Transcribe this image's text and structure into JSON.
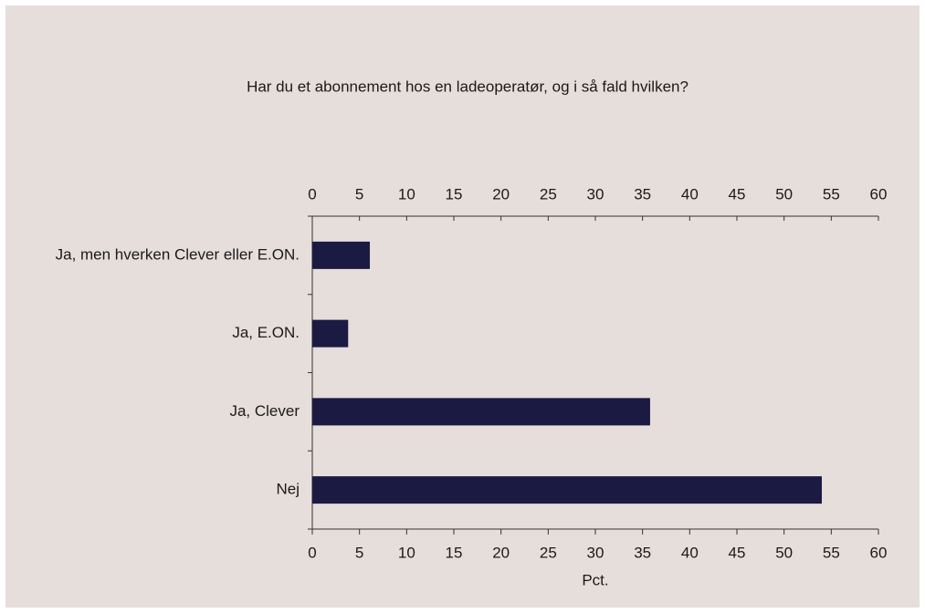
{
  "chart_data": {
    "type": "bar",
    "orientation": "horizontal",
    "title": "Har du et abonnement hos en ladeoperatør, og i så fald hvilken?",
    "categories": [
      "Ja, men hverken Clever eller E.ON.",
      "Ja, E.ON.",
      "Ja, Clever",
      "Nej"
    ],
    "values": [
      6.1,
      3.8,
      35.8,
      54.0
    ],
    "color": "#1b1a43",
    "xlabel": "Pct.",
    "xlim": [
      0,
      60
    ],
    "xticks": [
      0,
      5,
      10,
      15,
      20,
      25,
      30,
      35,
      40,
      45,
      50,
      55,
      60
    ],
    "grid": false
  }
}
